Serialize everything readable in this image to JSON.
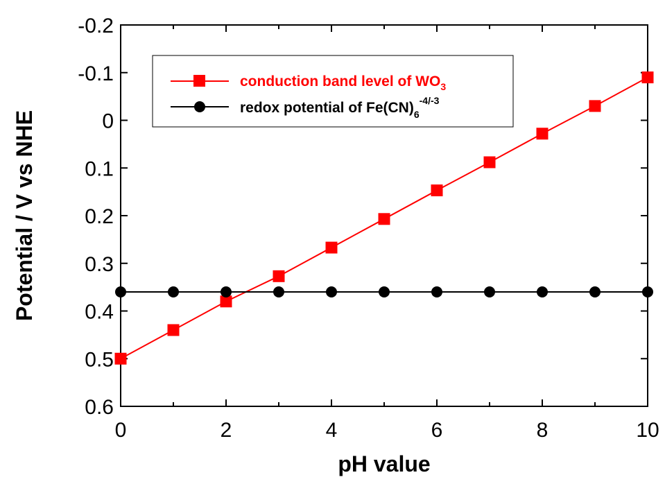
{
  "chart_data": {
    "type": "line",
    "xlabel": "pH value",
    "ylabel": "Potential / V vs NHE",
    "xlim": [
      0,
      10
    ],
    "ylim": [
      0.6,
      -0.2
    ],
    "y_inverted": true,
    "x_ticks": [
      "0",
      "2",
      "4",
      "6",
      "8",
      "10"
    ],
    "y_ticks": [
      "-0.2",
      "-0.1",
      "0",
      "0.1",
      "0.2",
      "0.3",
      "0.4",
      "0.5",
      "0.6"
    ],
    "grid": false,
    "legend_placement": "top-left",
    "x": [
      0,
      1,
      2,
      3,
      4,
      5,
      6,
      7,
      8,
      9,
      10
    ],
    "series": [
      {
        "name_parts": {
          "main": "conduction band level of WO",
          "sub": "3",
          "sup": ""
        },
        "color": "#ff0000",
        "marker": "square",
        "values": [
          0.5,
          0.44,
          0.38,
          0.327,
          0.267,
          0.207,
          0.147,
          0.088,
          0.028,
          -0.03,
          -0.09
        ]
      },
      {
        "name_parts": {
          "main": "redox potential of Fe(CN)",
          "sub": "6",
          "sup": "-4/-3"
        },
        "color": "#000000",
        "marker": "circle",
        "values": [
          0.36,
          0.36,
          0.36,
          0.36,
          0.36,
          0.36,
          0.36,
          0.36,
          0.36,
          0.36,
          0.36
        ]
      }
    ]
  }
}
